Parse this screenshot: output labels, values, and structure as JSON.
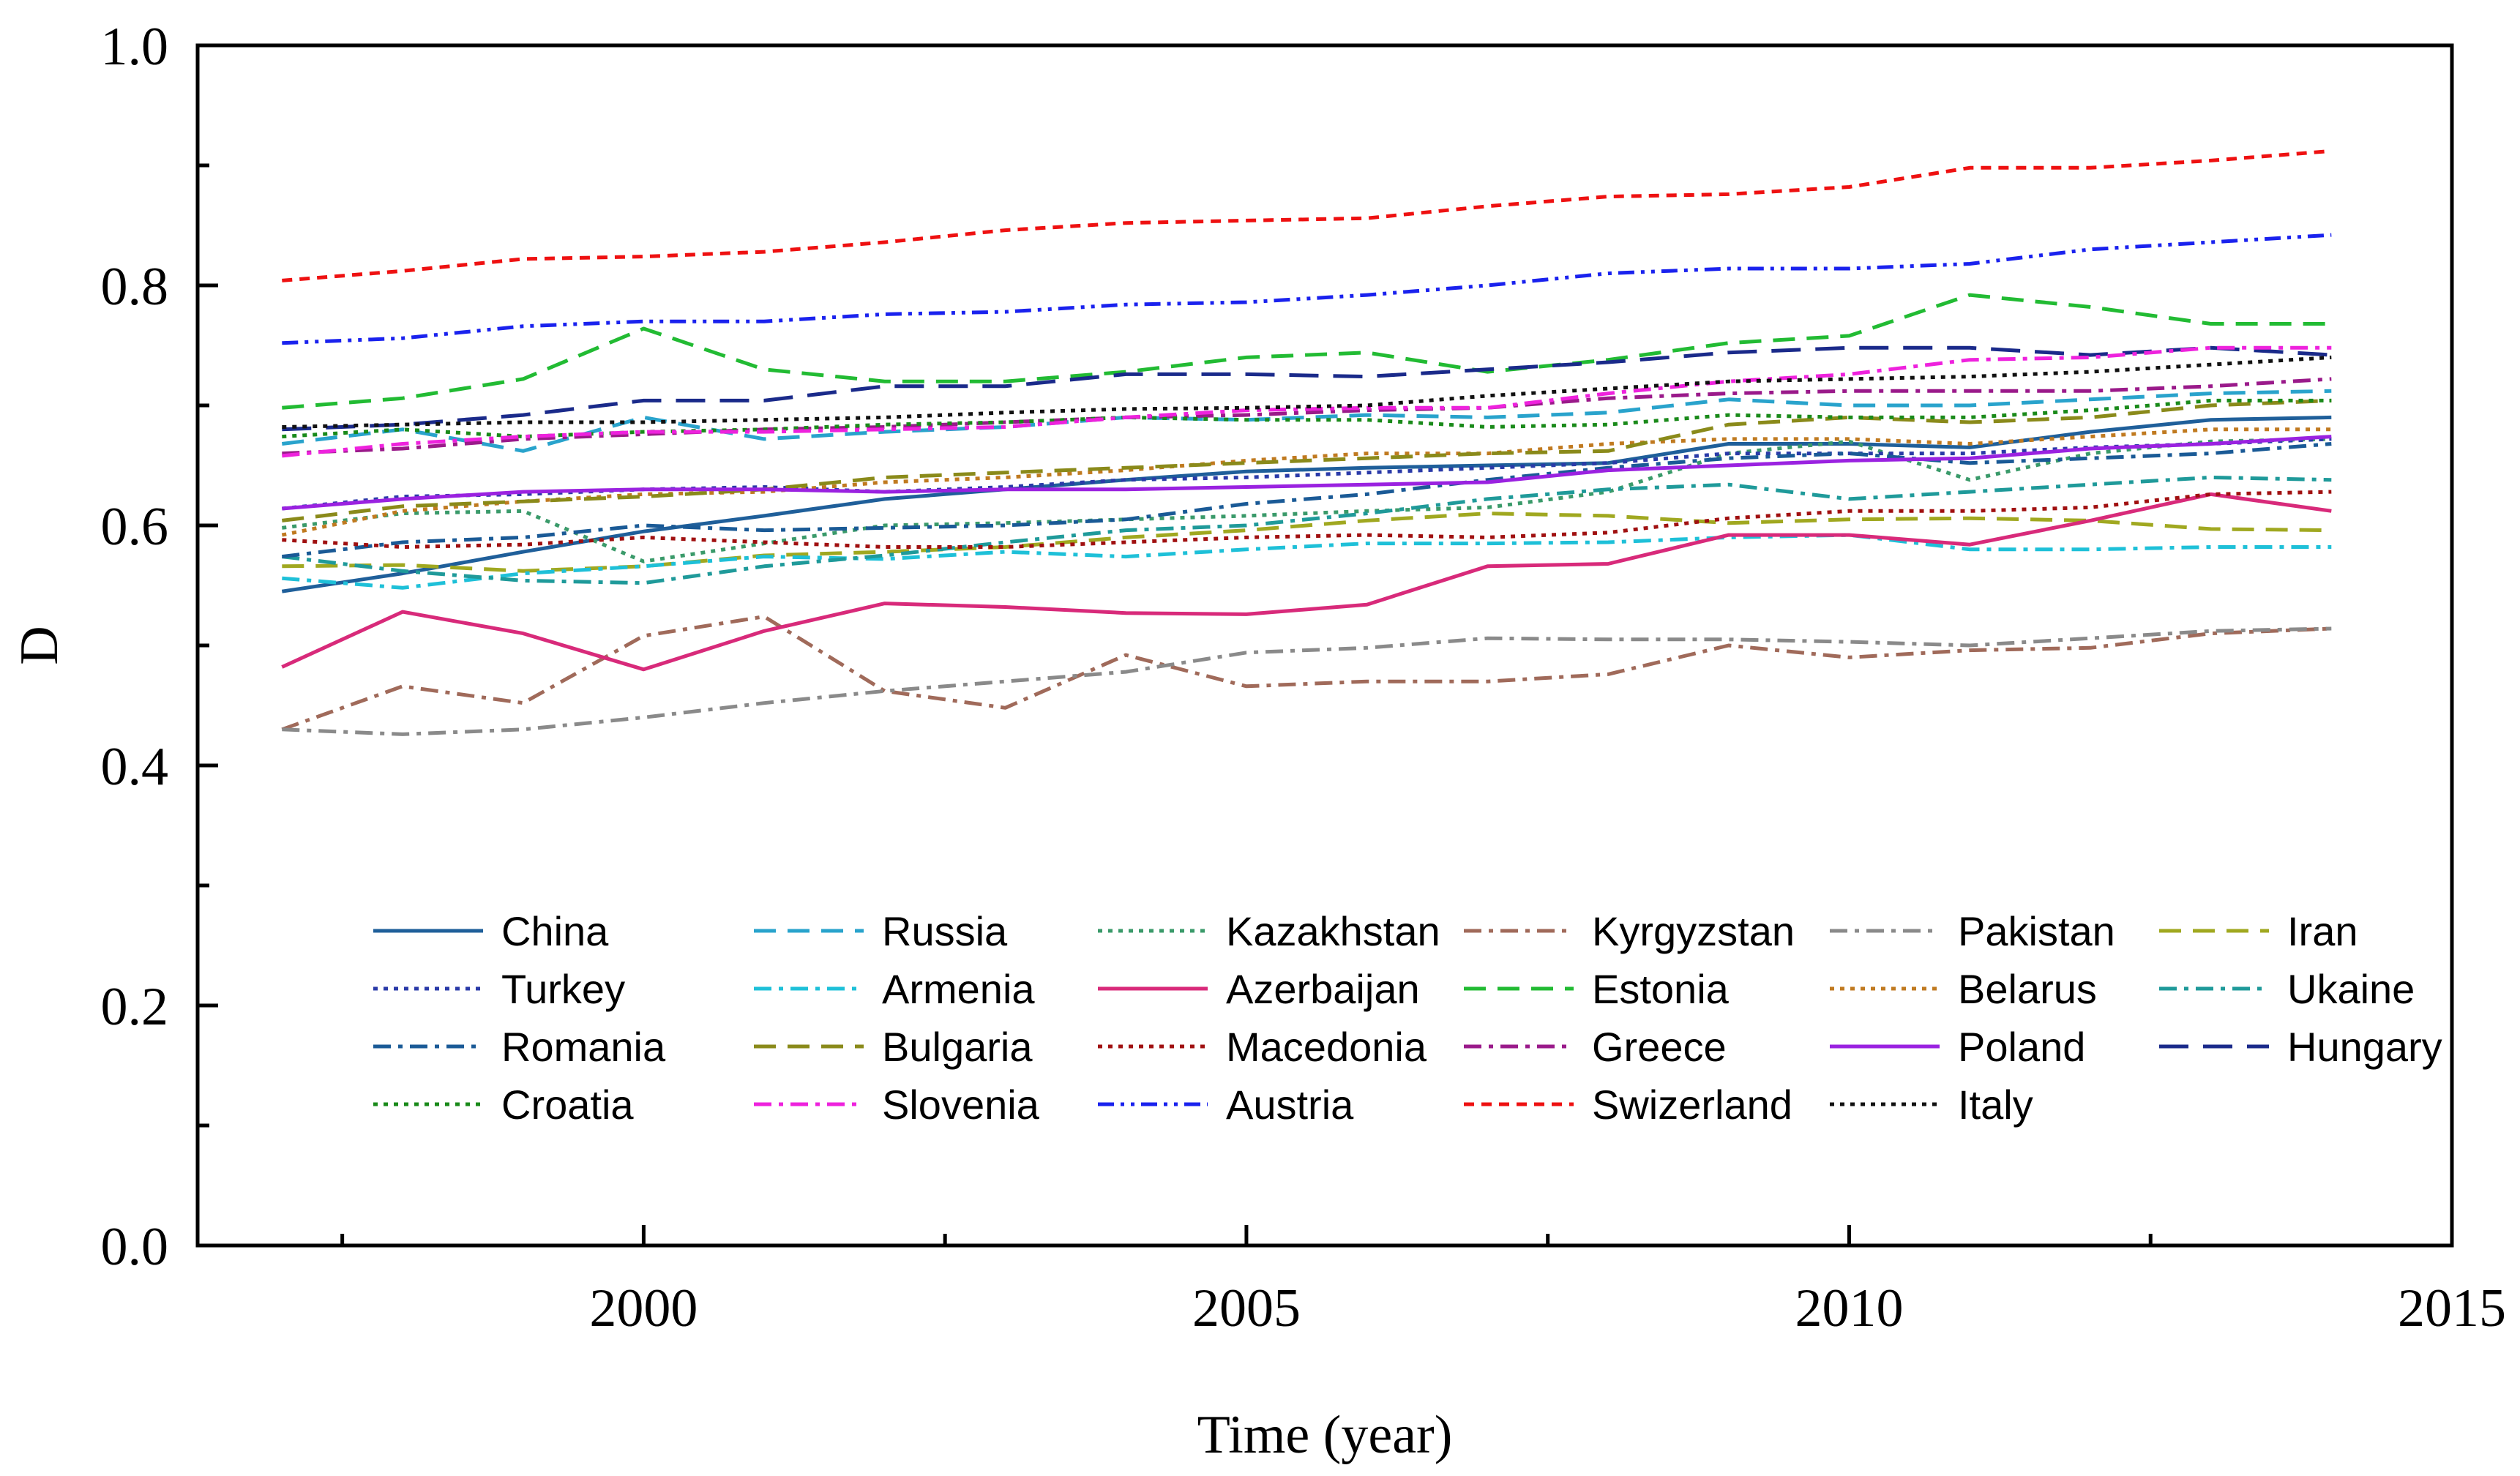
{
  "chart_data": {
    "type": "line",
    "title": "",
    "xlabel": "Time (year)",
    "ylabel": "D",
    "xlim": [
      1996.3,
      2015
    ],
    "ylim": [
      0.0,
      1.0
    ],
    "xticks": [
      2000,
      2005,
      2010,
      2015
    ],
    "yticks": [
      0.0,
      0.2,
      0.4,
      0.6,
      0.8,
      1.0
    ],
    "xtick_labels": [
      "2000",
      "2005",
      "2010",
      "2015"
    ],
    "ytick_labels": [
      "0.0",
      "0.2",
      "0.4",
      "0.6",
      "0.8",
      "1.0"
    ],
    "legend_position": "lower-left-inside",
    "x": [
      1997,
      1998,
      1999,
      2000,
      2001,
      2002,
      2003,
      2004,
      2005,
      2006,
      2007,
      2008,
      2009,
      2010,
      2011,
      2012,
      2013,
      2014
    ],
    "series": [
      {
        "name": "China",
        "color": "#1f5f9a",
        "dash": "solid",
        "values": [
          0.545,
          0.56,
          0.578,
          0.595,
          0.608,
          0.622,
          0.63,
          0.638,
          0.645,
          0.648,
          0.65,
          0.652,
          0.668,
          0.668,
          0.665,
          0.678,
          0.688,
          0.69
        ]
      },
      {
        "name": "Russia",
        "color": "#29a3cc",
        "dash": "dash",
        "values": [
          0.668,
          0.68,
          0.662,
          0.69,
          0.672,
          0.678,
          0.682,
          0.69,
          0.688,
          0.692,
          0.69,
          0.694,
          0.705,
          0.7,
          0.7,
          0.705,
          0.71,
          0.712
        ]
      },
      {
        "name": "Kazakhstan",
        "color": "#3a9a6a",
        "dash": "dot",
        "values": [
          0.598,
          0.61,
          0.612,
          0.57,
          0.585,
          0.6,
          0.602,
          0.605,
          0.608,
          0.612,
          0.615,
          0.628,
          0.66,
          0.67,
          0.638,
          0.66,
          0.67,
          0.672
        ]
      },
      {
        "name": "Kyrgyzstan",
        "color": "#a06a5a",
        "dash": "dashdot",
        "values": [
          0.43,
          0.466,
          0.452,
          0.508,
          0.524,
          0.462,
          0.448,
          0.492,
          0.466,
          0.47,
          0.47,
          0.476,
          0.5,
          0.49,
          0.496,
          0.498,
          0.51,
          0.514
        ]
      },
      {
        "name": "Pakistan",
        "color": "#8a8a8a",
        "dash": "dashdot",
        "values": [
          0.43,
          0.426,
          0.43,
          0.44,
          0.452,
          0.462,
          0.47,
          0.478,
          0.494,
          0.498,
          0.506,
          0.505,
          0.505,
          0.503,
          0.5,
          0.506,
          0.512,
          0.514
        ]
      },
      {
        "name": "Iran",
        "color": "#a0a820",
        "dash": "dash",
        "values": [
          0.566,
          0.567,
          0.562,
          0.566,
          0.575,
          0.578,
          0.582,
          0.59,
          0.596,
          0.604,
          0.61,
          0.608,
          0.602,
          0.605,
          0.606,
          0.604,
          0.597,
          0.596
        ]
      },
      {
        "name": "Turkey",
        "color": "#2a3aa8",
        "dash": "dot",
        "values": [
          0.614,
          0.624,
          0.626,
          0.63,
          0.632,
          0.628,
          0.632,
          0.638,
          0.64,
          0.644,
          0.648,
          0.652,
          0.66,
          0.66,
          0.66,
          0.665,
          0.668,
          0.672
        ]
      },
      {
        "name": "Armenia",
        "color": "#1ec0d8",
        "dash": "dashdot",
        "values": [
          0.556,
          0.548,
          0.56,
          0.566,
          0.574,
          0.572,
          0.578,
          0.574,
          0.58,
          0.585,
          0.585,
          0.586,
          0.59,
          0.592,
          0.58,
          0.58,
          0.582,
          0.582
        ]
      },
      {
        "name": "Azerbaijan",
        "color": "#d82a7a",
        "dash": "solid",
        "values": [
          0.482,
          0.528,
          0.51,
          0.48,
          0.512,
          0.535,
          0.532,
          0.527,
          0.526,
          0.534,
          0.566,
          0.568,
          0.592,
          0.592,
          0.584,
          0.604,
          0.626,
          0.612
        ]
      },
      {
        "name": "Estonia",
        "color": "#22bb33",
        "dash": "dash",
        "values": [
          0.698,
          0.706,
          0.722,
          0.764,
          0.73,
          0.72,
          0.72,
          0.728,
          0.74,
          0.744,
          0.728,
          0.738,
          0.752,
          0.758,
          0.792,
          0.782,
          0.768,
          0.768
        ]
      },
      {
        "name": "Belarus",
        "color": "#c07a20",
        "dash": "dot",
        "values": [
          0.592,
          0.612,
          0.62,
          0.626,
          0.628,
          0.636,
          0.64,
          0.646,
          0.654,
          0.66,
          0.66,
          0.668,
          0.672,
          0.672,
          0.668,
          0.674,
          0.68,
          0.68
        ]
      },
      {
        "name": "Ukaine",
        "color": "#1f9a9a",
        "dash": "dashdot",
        "values": [
          0.574,
          0.562,
          0.554,
          0.552,
          0.566,
          0.575,
          0.586,
          0.596,
          0.6,
          0.61,
          0.622,
          0.63,
          0.634,
          0.622,
          0.628,
          0.634,
          0.64,
          0.638
        ]
      },
      {
        "name": "Romania",
        "color": "#1a5a96",
        "dash": "dashdot",
        "values": [
          0.574,
          0.586,
          0.59,
          0.6,
          0.596,
          0.598,
          0.6,
          0.605,
          0.618,
          0.626,
          0.638,
          0.648,
          0.656,
          0.66,
          0.652,
          0.656,
          0.66,
          0.668
        ]
      },
      {
        "name": "Bulgaria",
        "color": "#8a8a1a",
        "dash": "dash",
        "values": [
          0.604,
          0.616,
          0.62,
          0.624,
          0.63,
          0.64,
          0.644,
          0.648,
          0.652,
          0.656,
          0.66,
          0.662,
          0.684,
          0.69,
          0.686,
          0.69,
          0.7,
          0.704
        ]
      },
      {
        "name": "Macedonia",
        "color": "#a01010",
        "dash": "dot",
        "values": [
          0.588,
          0.582,
          0.584,
          0.59,
          0.586,
          0.582,
          0.582,
          0.586,
          0.59,
          0.592,
          0.59,
          0.594,
          0.606,
          0.612,
          0.612,
          0.615,
          0.626,
          0.628
        ]
      },
      {
        "name": "Greece",
        "color": "#9a1a8a",
        "dash": "dashdot",
        "values": [
          0.66,
          0.664,
          0.672,
          0.676,
          0.68,
          0.682,
          0.686,
          0.69,
          0.692,
          0.696,
          0.698,
          0.706,
          0.71,
          0.712,
          0.712,
          0.712,
          0.716,
          0.722
        ]
      },
      {
        "name": "Poland",
        "color": "#9a22e0",
        "dash": "solid",
        "values": [
          0.614,
          0.622,
          0.628,
          0.63,
          0.63,
          0.628,
          0.63,
          0.63,
          0.632,
          0.634,
          0.636,
          0.646,
          0.65,
          0.654,
          0.656,
          0.664,
          0.668,
          0.674
        ]
      },
      {
        "name": "Hungary",
        "color": "#1a2a8a",
        "dash": "longdash",
        "values": [
          0.68,
          0.684,
          0.692,
          0.704,
          0.704,
          0.716,
          0.716,
          0.726,
          0.726,
          0.724,
          0.73,
          0.736,
          0.744,
          0.748,
          0.748,
          0.742,
          0.748,
          0.742
        ]
      },
      {
        "name": "Croatia",
        "color": "#1a8a1a",
        "dash": "dot",
        "values": [
          0.674,
          0.68,
          0.674,
          0.678,
          0.68,
          0.684,
          0.686,
          0.69,
          0.688,
          0.688,
          0.682,
          0.684,
          0.692,
          0.69,
          0.69,
          0.696,
          0.704,
          0.704
        ]
      },
      {
        "name": "Slovenia",
        "color": "#ee22dd",
        "dash": "dashdot",
        "values": [
          0.658,
          0.668,
          0.674,
          0.678,
          0.678,
          0.68,
          0.682,
          0.69,
          0.696,
          0.698,
          0.698,
          0.71,
          0.72,
          0.726,
          0.738,
          0.74,
          0.748,
          0.748
        ]
      },
      {
        "name": "Austria",
        "color": "#1a22ee",
        "dash": "dashdotdot",
        "values": [
          0.752,
          0.756,
          0.766,
          0.77,
          0.77,
          0.776,
          0.778,
          0.784,
          0.786,
          0.792,
          0.8,
          0.81,
          0.814,
          0.814,
          0.818,
          0.83,
          0.836,
          0.842
        ]
      },
      {
        "name": "Swizerland",
        "color": "#ee1111",
        "dash": "shortdash",
        "values": [
          0.804,
          0.812,
          0.822,
          0.824,
          0.828,
          0.836,
          0.846,
          0.852,
          0.854,
          0.856,
          0.866,
          0.874,
          0.876,
          0.882,
          0.898,
          0.898,
          0.904,
          0.912
        ]
      },
      {
        "name": "Italy",
        "color": "#111111",
        "dash": "dot",
        "values": [
          0.682,
          0.684,
          0.686,
          0.686,
          0.688,
          0.69,
          0.694,
          0.697,
          0.698,
          0.7,
          0.708,
          0.714,
          0.72,
          0.722,
          0.724,
          0.728,
          0.734,
          0.74
        ]
      }
    ]
  }
}
